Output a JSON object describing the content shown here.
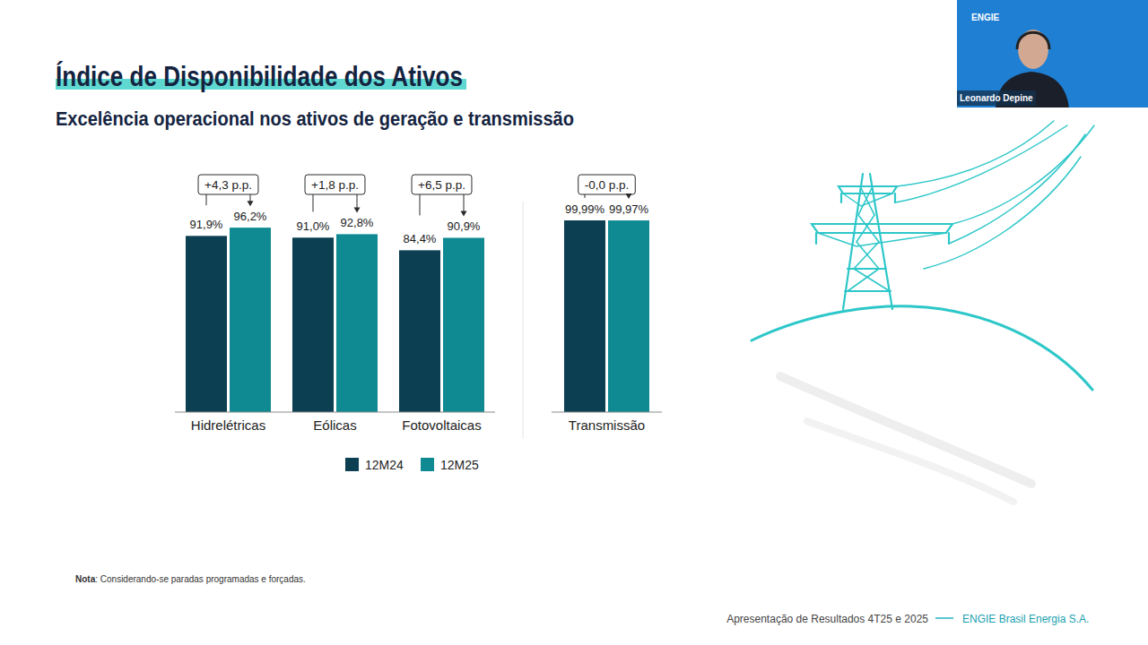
{
  "chart_data": {
    "type": "bar",
    "title": "Índice de Disponibilidade dos Ativos",
    "subtitle": "Excelência operacional nos ativos de geração e transmissão",
    "categories": [
      "Hidrelétricas",
      "Eólicas",
      "Fotovoltaicas",
      "Transmissão"
    ],
    "series": [
      {
        "name": "12M24",
        "color": "#0b3f51",
        "values": [
          91.9,
          91.0,
          84.4,
          99.99
        ],
        "value_labels": [
          "91,9%",
          "91,0%",
          "84,4%",
          "99,99%"
        ]
      },
      {
        "name": "12M25",
        "color": "#0f8a92",
        "values": [
          96.2,
          92.8,
          90.9,
          99.97
        ],
        "value_labels": [
          "96,2%",
          "92,8%",
          "90,9%",
          "99,97%"
        ]
      }
    ],
    "annotations": [
      "+4,3 p.p.",
      "+1,8 p.p.",
      "+6,5 p.p.",
      "-0,0 p.p."
    ],
    "ylim": [
      0,
      100
    ],
    "tick_labels": "x",
    "grid": false,
    "data_labels": true,
    "legend": "bottom",
    "note": "Nota: Considerando-se paradas programadas e forçadas.",
    "footer": "Apresentação de Resultados 4T25 e 2025",
    "company": "ENGIE Brasil Energia S.A.",
    "presenter": "Leonardo Depine",
    "logo": "ENGIE"
  }
}
